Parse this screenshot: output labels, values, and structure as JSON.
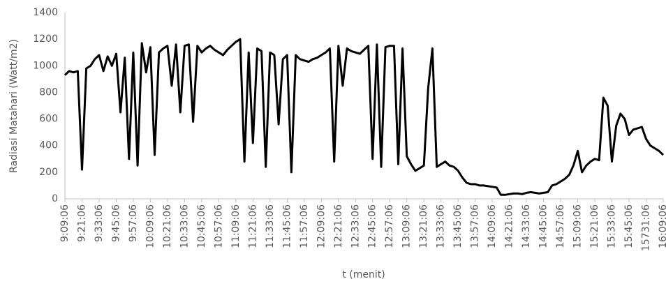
{
  "chart_data": {
    "type": "line",
    "y_label": "Radiasi Matahari (Watt/m2)",
    "x_label": "t (menit)",
    "color": "#000000",
    "ylim": [
      0,
      1400
    ],
    "yticks": [
      0,
      200,
      400,
      600,
      800,
      1000,
      1200,
      1400
    ],
    "categories": [
      "9:09:06",
      null,
      null,
      null,
      "9:21:06",
      null,
      null,
      null,
      "9:33:06",
      null,
      null,
      null,
      "9:45:06",
      null,
      null,
      null,
      "9:57:06",
      null,
      null,
      null,
      "10:09:06",
      null,
      null,
      null,
      "10:21:06",
      null,
      null,
      null,
      "10:33:06",
      null,
      null,
      null,
      "10:45:06",
      null,
      null,
      null,
      "10:57:06",
      null,
      null,
      null,
      "11:09:06",
      null,
      null,
      null,
      "11:21:06",
      null,
      null,
      null,
      "11:33:06",
      null,
      null,
      null,
      "11:45:06",
      null,
      null,
      null,
      "11:57:06",
      null,
      null,
      null,
      "12:09:06",
      null,
      null,
      null,
      "12:21:06",
      null,
      null,
      null,
      "12:33:06",
      null,
      null,
      null,
      "12:45:06",
      null,
      null,
      null,
      "12:57:06",
      null,
      null,
      null,
      "13:09:06",
      null,
      null,
      null,
      "13:21:06",
      null,
      null,
      null,
      "13:33:06",
      null,
      null,
      null,
      "13:45:06",
      null,
      null,
      null,
      "13:57:06",
      null,
      null,
      null,
      "14:09:06",
      null,
      null,
      null,
      "14:21:06",
      null,
      null,
      null,
      "14:33:06",
      null,
      null,
      null,
      "14:45:06",
      null,
      null,
      null,
      "14:57:06",
      null,
      null,
      null,
      "15:09:06",
      null,
      null,
      null,
      "15:21:06",
      null,
      null,
      null,
      "15:33:06",
      null,
      null,
      null,
      "15:45:06",
      null,
      null,
      null,
      "15731:06",
      null,
      null,
      null,
      "16:09:06"
    ],
    "values": [
      930,
      960,
      950,
      960,
      220,
      980,
      1000,
      1050,
      1080,
      960,
      1070,
      1000,
      1090,
      650,
      1060,
      300,
      1100,
      250,
      1170,
      950,
      1140,
      330,
      1100,
      1130,
      1150,
      850,
      1160,
      650,
      1150,
      1160,
      580,
      1150,
      1100,
      1130,
      1150,
      1120,
      1100,
      1080,
      1120,
      1150,
      1180,
      1200,
      280,
      1100,
      420,
      1130,
      1110,
      240,
      1100,
      1080,
      560,
      1050,
      1080,
      200,
      1080,
      1050,
      1040,
      1030,
      1050,
      1060,
      1080,
      1100,
      1130,
      280,
      1150,
      850,
      1130,
      1110,
      1100,
      1090,
      1120,
      1150,
      300,
      1160,
      240,
      1140,
      1150,
      1150,
      260,
      1130,
      320,
      260,
      210,
      230,
      250,
      830,
      1130,
      240,
      260,
      280,
      250,
      240,
      210,
      160,
      120,
      110,
      110,
      100,
      100,
      95,
      90,
      85,
      30,
      30,
      35,
      40,
      40,
      35,
      45,
      50,
      45,
      40,
      45,
      50,
      100,
      110,
      130,
      150,
      180,
      250,
      360,
      200,
      250,
      280,
      300,
      290,
      760,
      700,
      280,
      550,
      640,
      600,
      480,
      520,
      530,
      540,
      450,
      400,
      380,
      360,
      330
    ]
  }
}
